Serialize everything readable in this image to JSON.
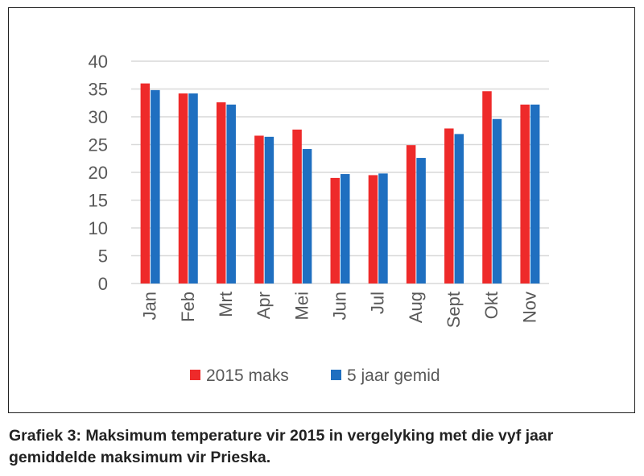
{
  "chart_data": {
    "type": "bar",
    "categories": [
      "Jan",
      "Feb",
      "Mrt",
      "Apr",
      "Mei",
      "Jun",
      "Jul",
      "Aug",
      "Sept",
      "Okt",
      "Nov"
    ],
    "series": [
      {
        "name": "2015 maks",
        "color": "#ee2a2a",
        "values": [
          36,
          34.2,
          32.6,
          26.6,
          27.7,
          19,
          19.5,
          24.9,
          27.9,
          34.6,
          32.2
        ]
      },
      {
        "name": "5 jaar gemid",
        "color": "#1f6fc0",
        "values": [
          34.8,
          34.2,
          32.2,
          26.4,
          24.2,
          19.7,
          19.8,
          22.6,
          26.9,
          29.6,
          32.2
        ]
      }
    ],
    "ylim": [
      0,
      40
    ],
    "yticks": [
      0,
      5,
      10,
      15,
      20,
      25,
      30,
      35,
      40
    ],
    "grid": true,
    "legend_position": "bottom",
    "gridline_color": "#d9d9d9",
    "text_color": "#595959"
  },
  "caption": "Grafiek 3: Maksimum temperature vir 2015 in vergelyking met die vyf jaar gemiddelde maksimum vir Prieska."
}
